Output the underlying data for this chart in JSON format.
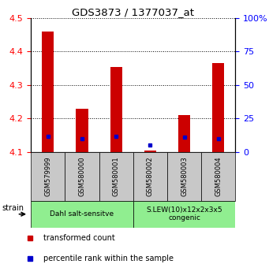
{
  "title": "GDS3873 / 1377037_at",
  "samples": [
    "GSM579999",
    "GSM580000",
    "GSM580001",
    "GSM580002",
    "GSM580003",
    "GSM580004"
  ],
  "transformed_counts": [
    4.46,
    4.23,
    4.355,
    4.105,
    4.21,
    4.365
  ],
  "percentile_ranks": [
    12,
    10,
    12,
    5,
    11,
    10
  ],
  "ylim_left": [
    4.1,
    4.5
  ],
  "ylim_right": [
    0,
    100
  ],
  "yticks_left": [
    4.1,
    4.2,
    4.3,
    4.4,
    4.5
  ],
  "yticks_right": [
    0,
    25,
    50,
    75,
    100
  ],
  "bar_color": "#cc0000",
  "dot_color": "#0000cc",
  "bar_bottom": 4.1,
  "group1_label": "Dahl salt-sensitve",
  "group2_label": "S.LEW(10)x12x2x3x5\ncongenic",
  "group_color": "#90ee90",
  "strain_label": "strain",
  "legend_red": "transformed count",
  "legend_blue": "percentile rank within the sample",
  "tick_bg_color": "#c8c8c8",
  "plot_bg": "#ffffff",
  "fig_w": 3.41,
  "fig_h": 3.54,
  "dpi": 100
}
